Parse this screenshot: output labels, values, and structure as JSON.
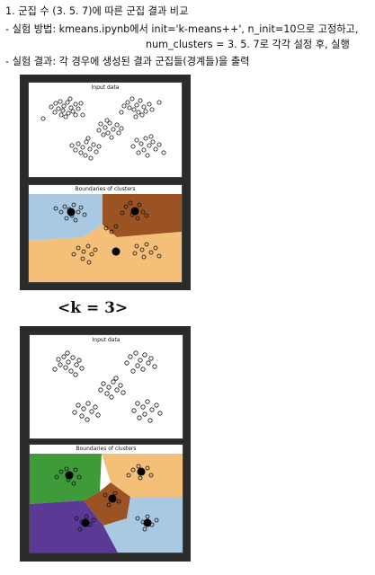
{
  "header": {
    "line1": "1. 군집 수 (3. 5. 7)에 따른 군집 결과 비교",
    "line2": "- 실험 방법: kmeans.ipynb에서 init='k-means++', n_init=10으로 고정하고,",
    "line3": "num_clusters = 3. 5. 7로 각각 설정 후, 실행",
    "line4": "- 실험 결과: 각 경우에 생성된 결과 군집들(경계들)을 출력"
  },
  "figures": [
    {
      "input_title": "Input data",
      "boundary_title": "Boundaries of clusters"
    },
    {
      "input_title": "Input data",
      "boundary_title": "Boundaries of clusters"
    }
  ],
  "k_label": "<k = 3>",
  "colors": {
    "figure_bg": "#2b2b2b",
    "light_blue": "#a9c9e2",
    "brown": "#9c5324",
    "light_orange": "#f4c079",
    "green": "#3f9a3a",
    "purple": "#5b3a96"
  }
}
